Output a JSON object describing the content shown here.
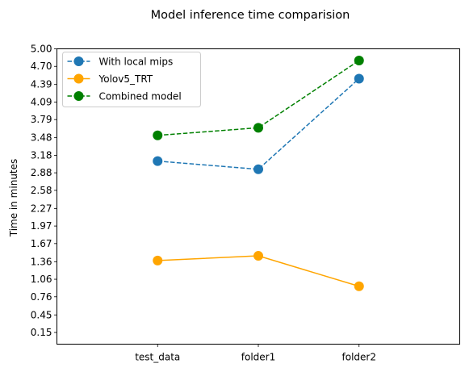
{
  "chart_data": {
    "type": "line",
    "title": "Model inference time comparision",
    "xlabel": "",
    "ylabel": "Time in minutes",
    "categories": [
      "test_data",
      "folder1",
      "folder2"
    ],
    "yticks": [
      "0.15",
      "0.45",
      "0.76",
      "1.06",
      "1.36",
      "1.67",
      "1.97",
      "2.27",
      "2.58",
      "2.88",
      "3.18",
      "3.48",
      "3.79",
      "4.09",
      "4.39",
      "4.70",
      "5.00"
    ],
    "ylim": [
      -0.05,
      5.0
    ],
    "xlim": [
      -1.0,
      3.0
    ],
    "legend_position": "upper-left",
    "grid": false,
    "series": [
      {
        "name": "With local mips",
        "values": [
          3.08,
          2.94,
          4.49
        ],
        "color": "#1f77b4",
        "dash": true
      },
      {
        "name": "Yolov5_TRT",
        "values": [
          1.38,
          1.46,
          0.94
        ],
        "color": "#ffa500",
        "dash": false
      },
      {
        "name": "Combined model",
        "values": [
          3.52,
          3.65,
          4.8
        ],
        "color": "#008000",
        "dash": true
      }
    ]
  }
}
